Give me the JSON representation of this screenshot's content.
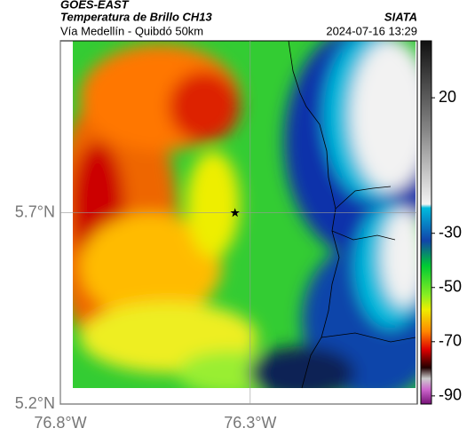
{
  "header": {
    "title": "GOES-EAST",
    "subtitle": "Temperatura de Brillo CH13",
    "route": "Vía Medellín - Quibdó 50km",
    "source": "SIATA",
    "timestamp": "2024-07-16 13:29"
  },
  "map": {
    "xlim": [
      -76.8,
      -75.86
    ],
    "ylim": [
      5.2,
      6.15
    ],
    "xticks": [
      {
        "value": -76.8,
        "label": "76.8°W"
      },
      {
        "value": -76.3,
        "label": "76.3°W"
      }
    ],
    "yticks": [
      {
        "value": 5.2,
        "label": "5.2°N"
      },
      {
        "value": 5.7,
        "label": "5.7°N"
      }
    ],
    "marker": {
      "lon": -76.34,
      "lat": 5.7
    }
  },
  "colorbar": {
    "clim": [
      -93,
      41
    ],
    "ticks": [
      20,
      -30,
      -50,
      -70,
      -90
    ]
  }
}
